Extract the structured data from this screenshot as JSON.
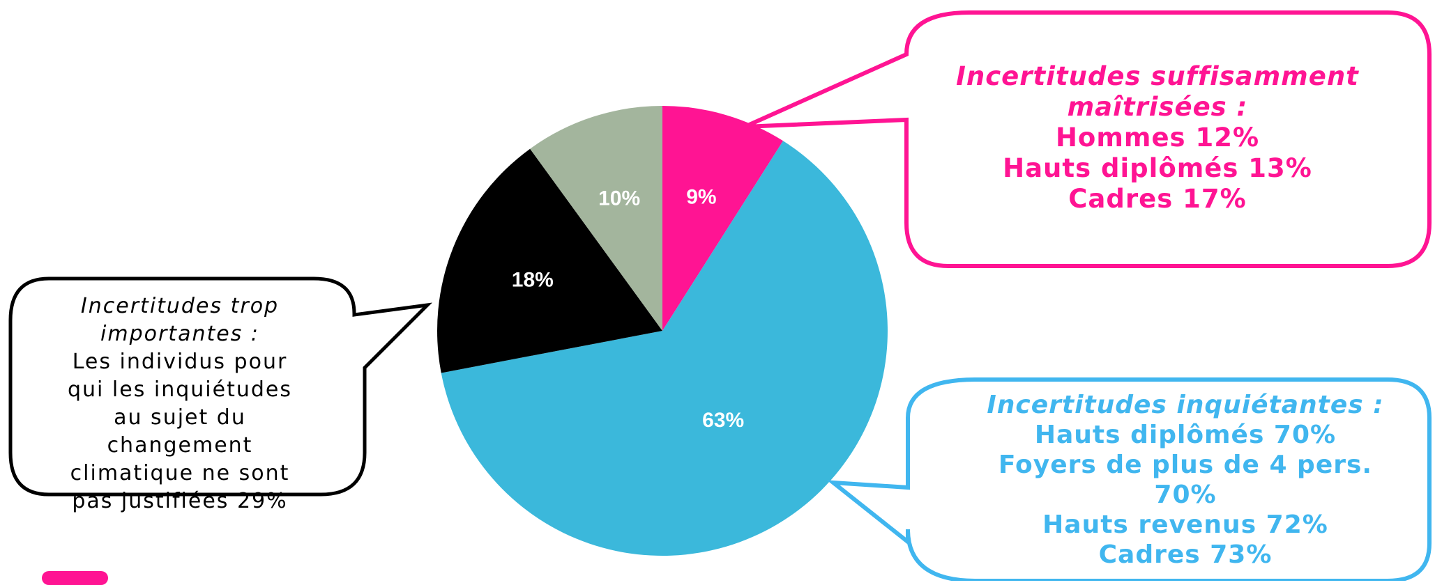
{
  "chart_data": {
    "type": "pie",
    "start_angle_deg": 0,
    "direction": "clockwise",
    "slices": [
      {
        "label": "9%",
        "value": 9,
        "color": "#ff1493"
      },
      {
        "label": "63%",
        "value": 63,
        "color": "#3bb8db"
      },
      {
        "label": "18%",
        "value": 18,
        "color": "#000000"
      },
      {
        "label": "10%",
        "value": 10,
        "color": "#a3b59d"
      }
    ],
    "label_color": "#ffffff"
  },
  "callouts": {
    "pink": {
      "color": "#ff1493",
      "title_1": "Incertitudes suffisamment",
      "title_2": "maîtrisées :",
      "lines": [
        "Hommes 12%",
        "Hauts diplômés 13%",
        "Cadres 17%"
      ]
    },
    "blue": {
      "color": "#40b6ef",
      "title": "Incertitudes inquiétantes :",
      "lines": [
        "Hauts diplômés 70%",
        "Foyers de plus de 4 pers.",
        "70%",
        "Hauts revenus 72%",
        "Cadres 73%"
      ]
    },
    "black": {
      "color": "#000000",
      "title_1": "Incertitudes trop",
      "title_2": "importantes :",
      "lines": [
        "Les individus pour",
        "qui les inquiétudes",
        "au sujet du",
        "changement",
        "climatique ne sont",
        "pas justifiées 29%"
      ]
    }
  },
  "legend": {
    "swatch_color": "#ff1493"
  }
}
